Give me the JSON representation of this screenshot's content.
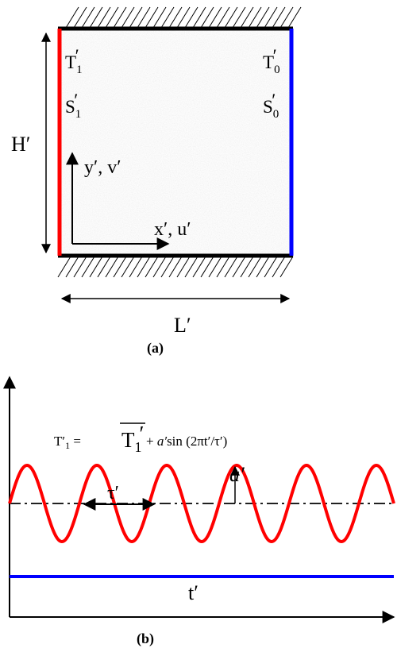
{
  "panel_a": {
    "caption": "(a)",
    "hot_wall": {
      "temp": "T",
      "temp_sub": "1",
      "conc": "S",
      "conc_sub": "1",
      "prime": "′",
      "color": "#ff0000"
    },
    "cold_wall": {
      "temp": "T",
      "temp_sub": "0",
      "conc": "S",
      "conc_sub": "0",
      "prime": "′",
      "color": "#0000ff"
    },
    "height_label": "H′",
    "width_label": "L′",
    "y_axis_label": "y′, v′",
    "x_axis_label": "x′, u′",
    "adiabatic_wall_color": "#000000",
    "cavity_fill": "#e9e9e9"
  },
  "panel_b": {
    "caption": "(b)",
    "equation": {
      "lhs": "T′",
      "lhs_sub": "1",
      "equals": " = ",
      "mean_term": "T",
      "mean_sub": "1",
      "mean_prime": "′",
      "plus": " + ",
      "amplitude": "a′",
      "sin_arg": "sin (2πt′/τ′)"
    },
    "amplitude_label": "a′",
    "period_label": "τ′",
    "time_axis_label": "t′",
    "hot_wave_color": "#ff0000",
    "cold_line_color": "#0000ff",
    "mean_line_style": "dash-dot",
    "cycles_shown": 5.5
  }
}
